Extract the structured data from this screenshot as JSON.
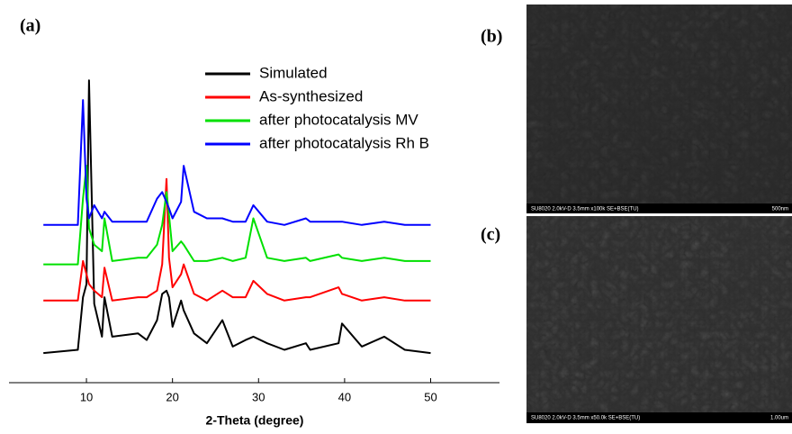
{
  "chart_data": {
    "type": "line",
    "panel_label": "(a)",
    "x_label": "2-Theta (degree)",
    "x": [
      5,
      9,
      9.6,
      10,
      10.3,
      10.9,
      11.8,
      12.1,
      13,
      16,
      17,
      18.2,
      18.8,
      19.3,
      19.6,
      20,
      21,
      21.3,
      22.5,
      24,
      25.8,
      27,
      28.5,
      29.4,
      31,
      33,
      35.5,
      36,
      39.3,
      39.7,
      42,
      44.6,
      47,
      50
    ],
    "series": [
      {
        "name": "Simulated",
        "color": "#000000",
        "values": [
          9,
          10,
          26,
          30,
          92,
          24,
          14,
          26,
          14,
          15,
          13,
          19,
          27,
          28,
          26,
          17,
          25,
          22,
          15,
          12,
          19,
          11,
          13,
          14,
          12,
          10,
          12,
          10,
          12,
          18,
          11,
          14,
          10,
          9
        ]
      },
      {
        "name": "As-synthesized",
        "color": "#ff0000",
        "values": [
          25,
          25,
          37,
          33,
          30,
          28,
          26,
          35,
          25,
          26,
          26,
          28,
          36,
          62,
          38,
          29,
          33,
          36,
          27,
          25,
          28,
          26,
          26,
          31,
          27,
          25,
          26,
          26,
          29,
          27,
          25,
          26,
          25,
          25
        ]
      },
      {
        "name": "after photocatalysis MV",
        "color": "#00e000",
        "values": [
          36,
          36,
          56,
          66,
          47,
          42,
          40,
          50,
          37,
          38,
          38,
          42,
          48,
          58,
          51,
          40,
          43,
          42,
          37,
          37,
          38,
          37,
          38,
          50,
          38,
          37,
          38,
          37,
          39,
          38,
          37,
          38,
          37,
          37
        ]
      },
      {
        "name": "after photocatalysis Rh B",
        "color": "#0000ff",
        "values": [
          48,
          48,
          86,
          56,
          50,
          54,
          50,
          52,
          49,
          49,
          49,
          56,
          58,
          55,
          53,
          50,
          55,
          66,
          52,
          50,
          50,
          49,
          49,
          54,
          49,
          48,
          50,
          49,
          49,
          49,
          48,
          49,
          48,
          48
        ]
      }
    ],
    "xlim": [
      1,
      58
    ],
    "xticks": [
      10,
      20,
      30,
      40,
      50
    ],
    "ylim": [
      0,
      100
    ]
  },
  "images": [
    {
      "panel_label": "(b)",
      "caption": "SU8020 2.0kV-D 3.5mm x100k SE+BSE(TU)",
      "scale": "500nm"
    },
    {
      "panel_label": "(c)",
      "caption": "SU8020 2.0kV-D 3.5mm x50.0k SE+BSE(TU)",
      "scale": "1.00um"
    }
  ]
}
